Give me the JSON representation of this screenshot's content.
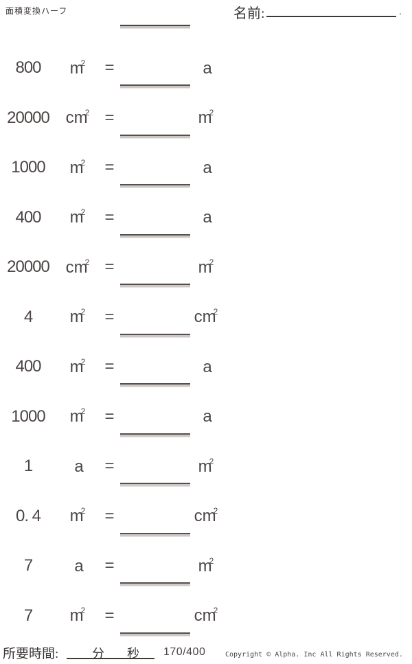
{
  "page": {
    "background_color": "#ffffff",
    "text_color": "#4c4645",
    "line_color": "#55504e"
  },
  "header": {
    "title": "面積変換ハーフ",
    "name_label": "名前:",
    "name_period": "."
  },
  "labels": {
    "equals": "="
  },
  "problems": [
    {
      "value": "800",
      "from": "m",
      "from_sup": "2",
      "to": "a",
      "to_sup": ""
    },
    {
      "value": "20000",
      "from": "cm",
      "from_sup": "2",
      "to": "m",
      "to_sup": "2"
    },
    {
      "value": "1000",
      "from": "m",
      "from_sup": "2",
      "to": "a",
      "to_sup": ""
    },
    {
      "value": "400",
      "from": "m",
      "from_sup": "2",
      "to": "a",
      "to_sup": ""
    },
    {
      "value": "20000",
      "from": "cm",
      "from_sup": "2",
      "to": "m",
      "to_sup": "2"
    },
    {
      "value": "4",
      "from": "m",
      "from_sup": "2",
      "to": "cm",
      "to_sup": "2"
    },
    {
      "value": "400",
      "from": "m",
      "from_sup": "2",
      "to": "a",
      "to_sup": ""
    },
    {
      "value": "1000",
      "from": "m",
      "from_sup": "2",
      "to": "a",
      "to_sup": ""
    },
    {
      "value": "1",
      "from": "a",
      "from_sup": "",
      "to": "m",
      "to_sup": "2"
    },
    {
      "value": "0. 4",
      "from": "m",
      "from_sup": "2",
      "to": "cm",
      "to_sup": "2"
    },
    {
      "value": "7",
      "from": "a",
      "from_sup": "",
      "to": "m",
      "to_sup": "2"
    },
    {
      "value": "7",
      "from": "m",
      "from_sup": "2",
      "to": "cm",
      "to_sup": "2"
    }
  ],
  "footer": {
    "time_label": "所要時間:",
    "minutes_label": "分",
    "seconds_label": "秒",
    "progress": "170/400",
    "copyright": "Copyright © Alpha. Inc All Rights Reserved."
  }
}
